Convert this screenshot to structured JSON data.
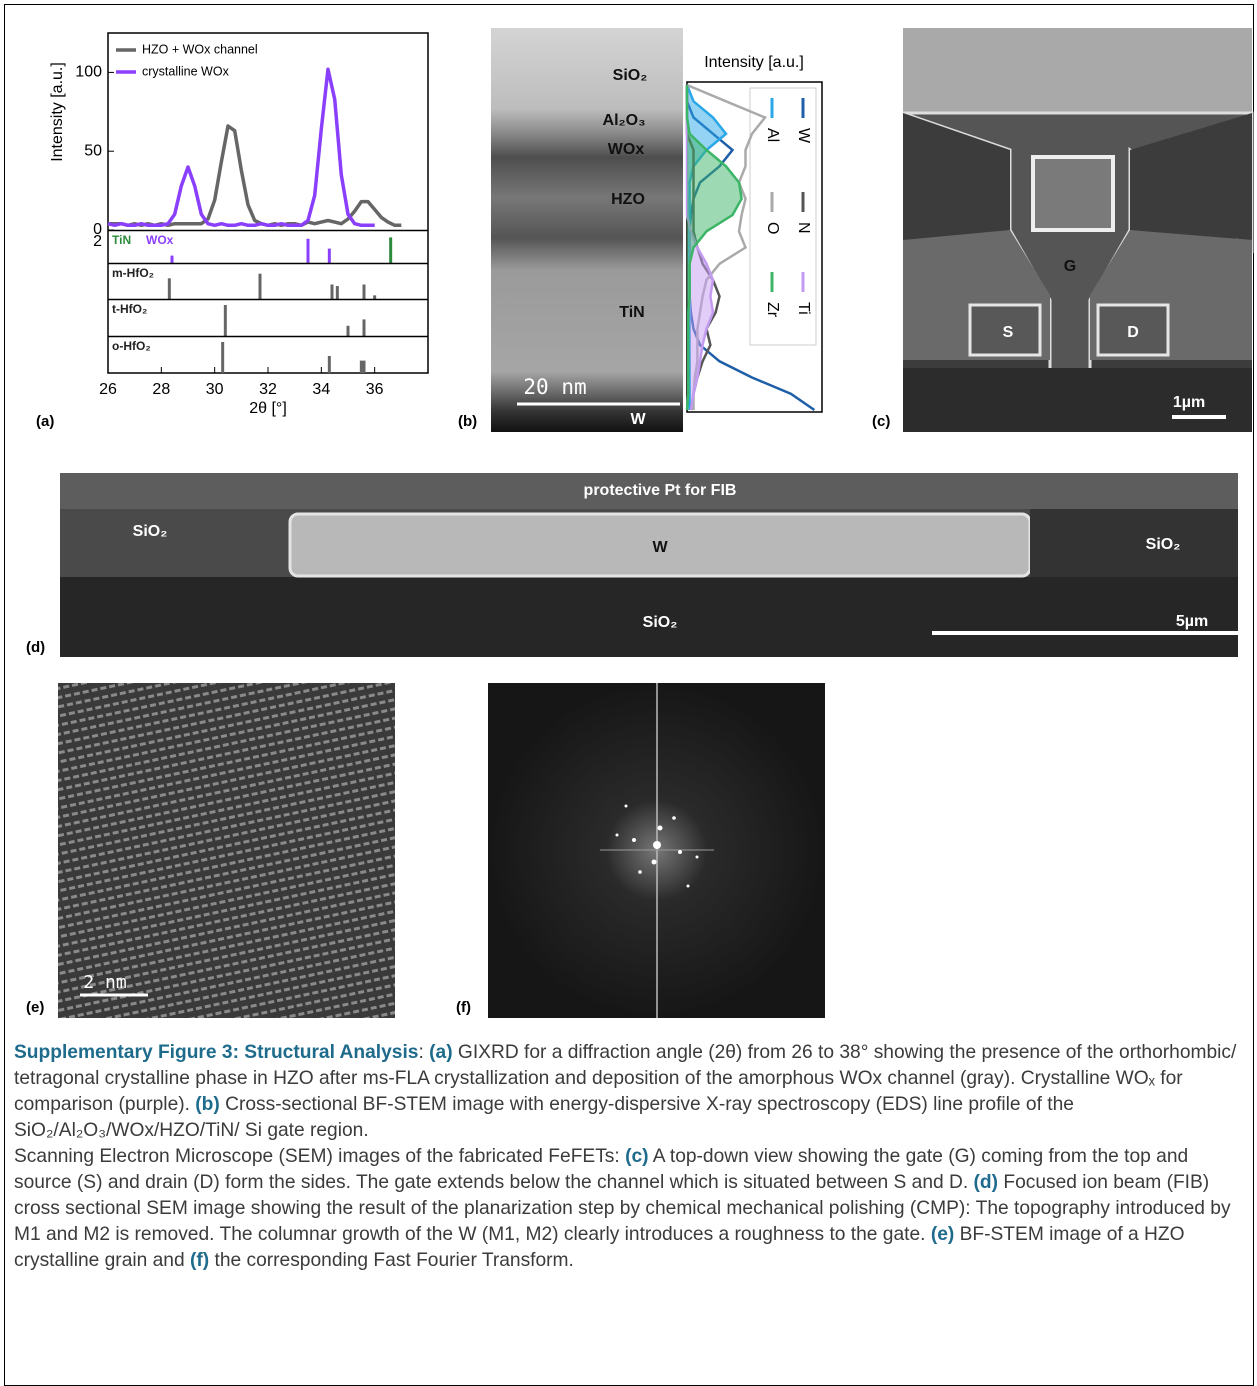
{
  "chart_data": {
    "type": "line",
    "x": [
      26,
      26.25,
      26.5,
      26.75,
      27,
      27.25,
      27.5,
      27.75,
      28,
      28.25,
      28.5,
      28.75,
      29,
      29.25,
      29.5,
      29.75,
      30,
      30.25,
      30.5,
      30.75,
      31,
      31.25,
      31.5,
      31.75,
      32,
      32.25,
      32.5,
      32.75,
      33,
      33.25,
      33.5,
      33.75,
      34,
      34.25,
      34.5,
      34.75,
      35,
      35.25,
      35.5,
      35.75,
      36,
      36.25,
      36.5,
      36.75,
      37
    ],
    "series": [
      {
        "name": "HZO + WOx channel",
        "color": "#666666",
        "values": [
          4,
          4,
          4,
          3,
          4,
          3,
          4,
          3,
          4,
          3,
          4,
          4,
          4,
          4,
          4,
          7,
          19,
          43,
          66,
          63,
          38,
          16,
          6,
          4,
          3,
          4,
          3,
          4,
          4,
          3,
          5,
          4,
          5,
          6,
          5,
          4,
          7,
          12,
          18,
          18,
          13,
          8,
          5,
          3,
          3
        ]
      },
      {
        "name": "crystalline WOx",
        "color": "#8a3ffc",
        "values": [
          4,
          3,
          4,
          3,
          3,
          4,
          3,
          3,
          3,
          4,
          10,
          28,
          40,
          28,
          10,
          4,
          3,
          4,
          3,
          3,
          4,
          3,
          3,
          4,
          3,
          3,
          4,
          3,
          3,
          3,
          6,
          22,
          64,
          102,
          83,
          35,
          10,
          4,
          3,
          3,
          3,
          null,
          null,
          null,
          null
        ]
      }
    ],
    "xlim": [
      26,
      38
    ],
    "xticks": [
      26,
      28,
      30,
      32,
      34,
      36
    ],
    "ylim": [
      0,
      125
    ],
    "yticks": [
      0,
      50,
      100
    ],
    "y_label": "Intensity [a.u.]",
    "x_label": "2θ [°]",
    "legend": "upper left",
    "reference_tick_label": "2",
    "reference_panels": [
      {
        "patterns": [
          {
            "name": "TiN",
            "color": "#2e8b3e",
            "positions": [
              36.6
            ],
            "heights": [
              95
            ]
          },
          {
            "name": "WOx",
            "color": "#8a3ffc",
            "positions": [
              28.4,
              33.5,
              34.3
            ],
            "heights": [
              30,
              90,
              55
            ]
          }
        ]
      },
      {
        "patterns": [
          {
            "name": "m-HfO₂",
            "color": "#666666",
            "positions": [
              28.3,
              31.7,
              34.4,
              34.6,
              35.6,
              36.0
            ],
            "heights": [
              70,
              85,
              50,
              45,
              50,
              15
            ]
          }
        ]
      },
      {
        "patterns": [
          {
            "name": "t-HfO₂",
            "color": "#666666",
            "positions": [
              30.4,
              35.0,
              35.6
            ],
            "heights": [
              100,
              35,
              55
            ]
          }
        ]
      },
      {
        "patterns": [
          {
            "name": "o-HfO₂",
            "color": "#666666",
            "positions": [
              30.3,
              34.3,
              35.5,
              35.6
            ],
            "heights": [
              100,
              55,
              40,
              40
            ]
          }
        ]
      }
    ]
  },
  "panel_letters": [
    "(a)",
    "(b)",
    "(c)",
    "(d)",
    "(e)",
    "(f)"
  ],
  "panel_b": {
    "layers": [
      "SiO₂",
      "Al₂O₃",
      "WOx",
      "HZO",
      "TiN",
      "W"
    ],
    "scale_bar": "20 nm",
    "plot_title": "Intensity [a.u.]",
    "eds": {
      "depth": [
        0,
        2,
        4,
        6,
        8,
        10,
        12,
        14,
        16,
        18,
        20,
        22,
        24,
        26,
        28,
        30,
        32,
        34,
        36,
        38,
        40
      ],
      "series": [
        {
          "name": "W",
          "color": "#1f5fa8",
          "fill": false,
          "values": [
            0,
            0,
            0.05,
            0.2,
            0.35,
            0.25,
            0.1,
            0.05,
            0.03,
            0.02,
            0.02,
            0.02,
            0.02,
            0.02,
            0.03,
            0.05,
            0.1,
            0.25,
            0.5,
            0.8,
            0.98
          ]
        },
        {
          "name": "Al",
          "color": "#2aa7e8",
          "fill": true,
          "values": [
            0,
            0.05,
            0.2,
            0.3,
            0.15,
            0.05,
            0.02,
            0.02,
            0.02,
            0.02,
            0.02,
            0.02,
            0.02,
            0.02,
            0.02,
            0.02,
            0.02,
            0.02,
            0.02,
            0.02,
            0.02
          ]
        },
        {
          "name": "N",
          "color": "#555555",
          "fill": false,
          "values": [
            0,
            0,
            0,
            0,
            0.05,
            0.05,
            0.05,
            0.05,
            0.05,
            0.05,
            0.08,
            0.12,
            0.2,
            0.25,
            0.22,
            0.15,
            0.18,
            0.12,
            0.08,
            0.05,
            0.03
          ]
        },
        {
          "name": "O",
          "color": "#aaaaaa",
          "fill": false,
          "values": [
            0,
            0.3,
            0.6,
            0.5,
            0.45,
            0.45,
            0.4,
            0.45,
            0.42,
            0.4,
            0.45,
            0.25,
            0.15,
            0.12,
            0.1,
            0.08,
            0.08,
            0.08,
            0.06,
            0.05,
            0.05
          ]
        },
        {
          "name": "Ti",
          "color": "#c39bf0",
          "fill": true,
          "values": [
            0,
            0,
            0,
            0,
            0,
            0,
            0,
            0,
            0,
            0.03,
            0.08,
            0.15,
            0.2,
            0.18,
            0.2,
            0.15,
            0.12,
            0.1,
            0.08,
            0.05,
            0.03
          ]
        },
        {
          "name": "Zr",
          "color": "#3cb567",
          "fill": true,
          "values": [
            0,
            0,
            0,
            0.02,
            0.15,
            0.3,
            0.4,
            0.42,
            0.35,
            0.15,
            0.05,
            0.02,
            0.02,
            0.02,
            0.01,
            0.01,
            0.01,
            0.01,
            0.01,
            0.01,
            0
          ]
        }
      ]
    }
  },
  "panel_c": {
    "gate": "G",
    "source": "S",
    "drain": "D",
    "scale_bar": "1µm"
  },
  "panel_d": {
    "top_label": "protective Pt for FIB",
    "left": "SiO₂",
    "metal": "W",
    "right": "SiO₂",
    "bottom": "SiO₂",
    "scale_bar": "5µm"
  },
  "panel_e": {
    "scale_bar": "2 nm"
  },
  "caption": {
    "paragraphs": [
      [
        {
          "text": "Supplementary Figure 3: Structural Analysis",
          "bold": true
        },
        {
          "text": ": ",
          "bold": false
        },
        {
          "text": "(a)",
          "bold": true
        },
        {
          "text": " GIXRD for a diffraction angle (2θ) from 26 to 38° showing the presence of the orthorhombic/ tetragonal crystalline phase in HZO after ms-FLA crystallization and deposition of the amorphous WOx channel (gray). Crystalline WOₓ for comparison (purple). ",
          "bold": false
        },
        {
          "text": "(b)",
          "bold": true
        },
        {
          "text": " Cross-sectional BF-STEM image with energy-dispersive X-ray spectroscopy (EDS) line profile of the SiO₂/Al₂O₃/WOx/HZO/TiN/ Si gate region.",
          "bold": false
        }
      ],
      [
        {
          "text": "Scanning Electron Microscope (SEM) images of the fabricated FeFETs: ",
          "bold": false
        },
        {
          "text": "(c)",
          "bold": true
        },
        {
          "text": " A top-down view showing the gate (G) coming from the top and source (S) and drain (D) form the sides. The gate extends below the channel which is situated between S and D. ",
          "bold": false
        },
        {
          "text": "(d)",
          "bold": true
        },
        {
          "text": " Focused ion beam (FIB) cross sectional SEM image showing the result of the planarization step by chemical mechanical polishing (CMP): The topography introduced by M1 and M2 is removed. The columnar growth of the W (M1, M2) clearly introduces a roughness to the gate. ",
          "bold": false
        },
        {
          "text": "(e)",
          "bold": true
        },
        {
          "text": " BF-STEM image of a HZO crystalline grain and ",
          "bold": false
        },
        {
          "text": "(f)",
          "bold": true
        },
        {
          "text": " the corresponding Fast Fourier Transform.",
          "bold": false
        }
      ]
    ]
  }
}
